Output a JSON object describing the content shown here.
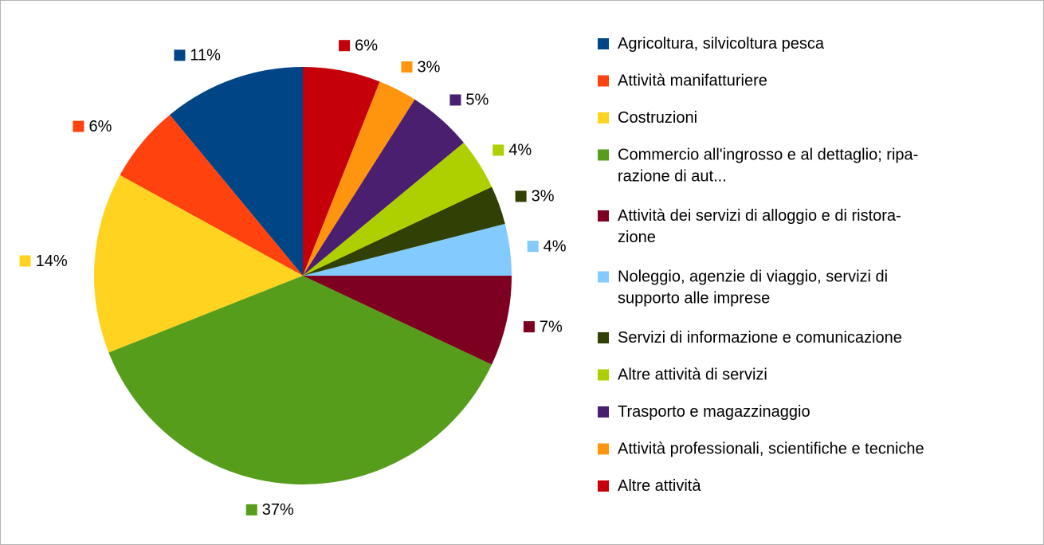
{
  "chart_data": {
    "type": "pie",
    "categories": [
      "Agricoltura, silvicoltura pesca",
      "Attività manifatturiere",
      "Costruzioni",
      "Commercio all'ingrosso e al dettaglio; ripa-\nrazione di aut...",
      "Attività dei servizi di alloggio e di ristora-\nzione",
      "Noleggio, agenzie di viaggio, servizi di\nsupporto alle imprese",
      "Servizi di informazione e comunicazione",
      "Altre attività di servizi",
      "Trasporto e magazzinaggio",
      "Attività professionali, scientifiche e tecniche",
      "Altre attività"
    ],
    "values": [
      11,
      6,
      14,
      37,
      7,
      4,
      3,
      4,
      5,
      3,
      6
    ],
    "value_labels": [
      "11%",
      "6%",
      "14%",
      "37%",
      "7%",
      "4%",
      "3%",
      "4%",
      "5%",
      "3%",
      "6%"
    ],
    "colors": [
      "#004586",
      "#ff420e",
      "#ffd320",
      "#579d1c",
      "#7e0021",
      "#83caff",
      "#314004",
      "#aecf00",
      "#4b1f6f",
      "#ff950e",
      "#c5000b"
    ],
    "legend": "right"
  }
}
